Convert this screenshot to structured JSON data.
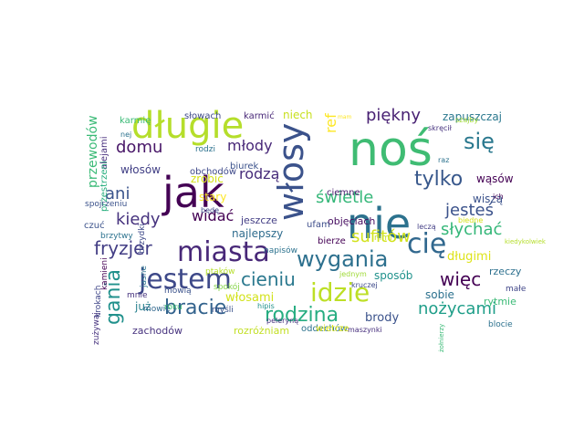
{
  "title": "",
  "colors": {
    "background": "#ffffff"
  },
  "words": [
    {
      "text": "noś",
      "color": "#3fbc73"
    },
    {
      "text": "jak",
      "color": "#440154"
    },
    {
      "text": "nie",
      "color": "#2c728e"
    },
    {
      "text": "włosy",
      "color": "#3b528b"
    },
    {
      "text": "długie",
      "color": "#b5de2b"
    },
    {
      "text": "miasta",
      "color": "#482878"
    },
    {
      "text": "idzie",
      "color": "#bddf26"
    },
    {
      "text": "jestem",
      "color": "#3e4989"
    },
    {
      "text": "cię",
      "color": "#31688e"
    },
    {
      "text": "się",
      "color": "#2a788e"
    },
    {
      "text": "tylko",
      "color": "#38588c"
    },
    {
      "text": "wygania",
      "color": "#2d708e"
    },
    {
      "text": "fryzjer",
      "color": "#433e85"
    },
    {
      "text": "sufitów",
      "color": "#d2e21b"
    },
    {
      "text": "rodzina",
      "color": "#26ad81"
    },
    {
      "text": "piękny",
      "color": "#482173"
    },
    {
      "text": "nożycami",
      "color": "#1f9e89"
    },
    {
      "text": "gania",
      "color": "#21918c"
    },
    {
      "text": "bracie",
      "color": "#33638d"
    },
    {
      "text": "jesteś",
      "color": "#3b528b"
    },
    {
      "text": "więc",
      "color": "#440154"
    },
    {
      "text": "słychać",
      "color": "#35b779"
    },
    {
      "text": "kiedy",
      "color": "#46327e"
    },
    {
      "text": "cieniu",
      "color": "#2a788e"
    },
    {
      "text": "domu",
      "color": "#481668"
    },
    {
      "text": "widać",
      "color": "#440154"
    },
    {
      "text": "świetle",
      "color": "#35b779"
    },
    {
      "text": "ani",
      "color": "#3a548c"
    },
    {
      "text": "rodzą",
      "color": "#472c7a"
    },
    {
      "text": "młody",
      "color": "#482878"
    },
    {
      "text": "przewodów",
      "color": "#3aba76"
    },
    {
      "text": "ref",
      "color": "#fde725"
    },
    {
      "text": "włosami",
      "color": "#d2e21b"
    },
    {
      "text": "długimi",
      "color": "#dde318"
    },
    {
      "text": "brody",
      "color": "#3b528b"
    },
    {
      "text": "zapuszczaj",
      "color": "#2a788e"
    },
    {
      "text": "niech",
      "color": "#c8e020"
    },
    {
      "text": "najlepszy",
      "color": "#2f6c8e"
    },
    {
      "text": "sposób",
      "color": "#20928c"
    },
    {
      "text": "sobie",
      "color": "#2c718e"
    },
    {
      "text": "zrobić",
      "color": "#d5e21a"
    },
    {
      "text": "włosów",
      "color": "#424086"
    },
    {
      "text": "już",
      "color": "#27808e"
    },
    {
      "text": "wąsów",
      "color": "#440154"
    },
    {
      "text": "wiszą",
      "color": "#3b528b"
    },
    {
      "text": "rzeczy",
      "color": "#2d708e"
    },
    {
      "text": "objęciach",
      "color": "#470e61"
    },
    {
      "text": "rytmie",
      "color": "#3aba76"
    },
    {
      "text": "zachodów",
      "color": "#46327e"
    },
    {
      "text": "rozróżniam",
      "color": "#c2df23"
    },
    {
      "text": "oddechów",
      "color": "#2c728e"
    },
    {
      "text": "wietrze",
      "color": "#dde318"
    },
    {
      "text": "jeszcze",
      "color": "#433e85"
    },
    {
      "text": "bierze",
      "color": "#440154"
    },
    {
      "text": "ufam",
      "color": "#3d4d8a"
    },
    {
      "text": "ciemne",
      "color": "#481b6d"
    },
    {
      "text": "biurek",
      "color": "#3b528b"
    },
    {
      "text": "obchodów",
      "color": "#3e4989"
    },
    {
      "text": "stary",
      "color": "#fde725"
    },
    {
      "text": "słowach",
      "color": "#3e4989"
    },
    {
      "text": "karmić",
      "color": "#482878"
    },
    {
      "text": "karmię",
      "color": "#3aba76"
    },
    {
      "text": "rodzi",
      "color": "#2c718e"
    },
    {
      "text": "alejami",
      "color": "#472f7d"
    },
    {
      "text": "przestrzeni",
      "color": "#29af7f"
    },
    {
      "text": "spojrzeniu",
      "color": "#3b528b"
    },
    {
      "text": "czuć",
      "color": "#3b528b"
    },
    {
      "text": "brzytwy",
      "color": "#2c728e"
    },
    {
      "text": "brzydki",
      "color": "#3e4989"
    },
    {
      "text": "kamieni",
      "color": "#440154"
    },
    {
      "text": "zużywaj",
      "color": "#46327e"
    },
    {
      "text": "krokach",
      "color": "#404688"
    },
    {
      "text": "mnie",
      "color": "#46327e"
    },
    {
      "text": "jasne",
      "color": "#2c728e"
    },
    {
      "text": "mowie",
      "color": "#31688e"
    },
    {
      "text": "mówią",
      "color": "#3b528b"
    },
    {
      "text": "roku",
      "color": "#3fbc73"
    },
    {
      "text": "ptaków",
      "color": "#b5de2b"
    },
    {
      "text": "spokój",
      "color": "#86d549"
    },
    {
      "text": "myśli",
      "color": "#3b528b"
    },
    {
      "text": "hipis",
      "color": "#21918c"
    },
    {
      "text": "peleryną",
      "color": "#46327e"
    },
    {
      "text": "napisów",
      "color": "#2c728e"
    },
    {
      "text": "jednym",
      "color": "#a0da39"
    },
    {
      "text": "kruczej",
      "color": "#3e4989"
    },
    {
      "text": "maszynki",
      "color": "#472f7d"
    },
    {
      "text": "żołnierzy",
      "color": "#3aba76"
    },
    {
      "text": "blocie",
      "color": "#2c718e"
    },
    {
      "text": "małe",
      "color": "#404688"
    },
    {
      "text": "kiedykolwiek",
      "color": "#b5de2b"
    },
    {
      "text": "nimi",
      "color": "#c8e020"
    },
    {
      "text": "biedne",
      "color": "#d5e21a"
    },
    {
      "text": "ich",
      "color": "#440154"
    },
    {
      "text": "raz",
      "color": "#2c728e"
    },
    {
      "text": "leczą",
      "color": "#433e85"
    },
    {
      "text": "będę",
      "color": "#3e4989"
    },
    {
      "text": "skręcił",
      "color": "#46327e"
    },
    {
      "text": "szajby",
      "color": "#a0da39"
    },
    {
      "text": "nej",
      "color": "#2c728e"
    },
    {
      "text": "mam",
      "color": "#fde725"
    }
  ]
}
